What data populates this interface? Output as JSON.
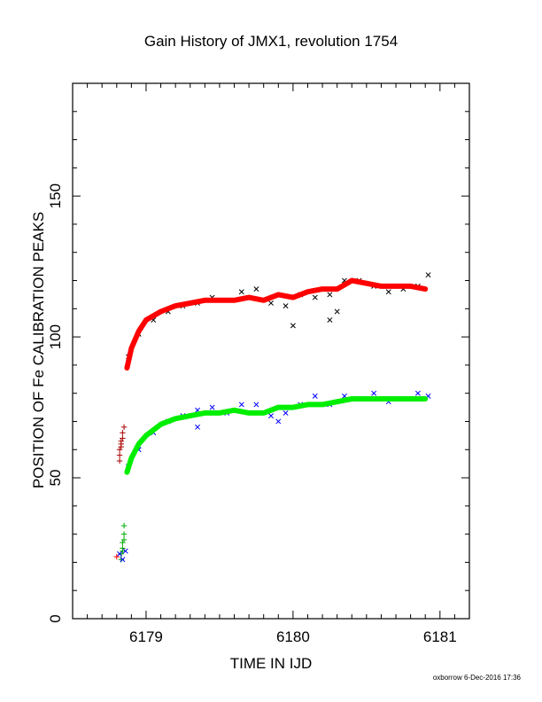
{
  "chart_data": {
    "type": "scatter",
    "title": "Gain History of JMX1, revolution 1754",
    "xlabel": "TIME IN IJD",
    "ylabel": "POSITION OF Fe CALIBRATION PEAKS",
    "xlim": [
      6178.5,
      6181.2
    ],
    "ylim": [
      0,
      190
    ],
    "x_ticks": [
      6179,
      6180,
      6181
    ],
    "y_ticks": [
      0,
      50,
      100,
      150
    ],
    "x_minor_step": 0.1,
    "y_minor_step": 10,
    "grid": false,
    "legend": "none",
    "footer": "oxborrow 6-Dec-2016 17:36",
    "series": [
      {
        "color": "#000000",
        "marker": "x",
        "x": [
          6178.88,
          6178.95,
          6179.05,
          6179.15,
          6179.25,
          6179.35,
          6179.45,
          6179.55,
          6179.65,
          6179.75,
          6179.85,
          6179.95,
          6180.05,
          6180.15,
          6180.25,
          6180.35,
          6180.45,
          6180.55,
          6180.65,
          6180.75,
          6180.85,
          6180.92,
          6180.0,
          6180.25,
          6180.3
        ],
        "y": [
          93,
          101,
          106,
          109,
          111,
          112,
          114,
          113,
          116,
          117,
          112,
          111,
          115,
          114,
          115,
          120,
          120,
          118,
          116,
          117,
          118,
          122,
          104,
          106,
          109
        ]
      },
      {
        "color": "#ff0000",
        "marker": "thick-line",
        "x": [
          6178.87,
          6178.9,
          6178.95,
          6179.0,
          6179.1,
          6179.2,
          6179.3,
          6179.4,
          6179.5,
          6179.6,
          6179.7,
          6179.8,
          6179.9,
          6180.0,
          6180.1,
          6180.2,
          6180.3,
          6180.4,
          6180.5,
          6180.6,
          6180.7,
          6180.8,
          6180.9
        ],
        "y": [
          89,
          96,
          102,
          106,
          109,
          111,
          112,
          113,
          113,
          113,
          114,
          113,
          115,
          114,
          116,
          117,
          117,
          120,
          119,
          118,
          118,
          118,
          117
        ]
      },
      {
        "color": "#0000ff",
        "marker": "x",
        "x": [
          6178.88,
          6178.95,
          6179.05,
          6179.15,
          6179.25,
          6179.35,
          6179.45,
          6179.55,
          6179.65,
          6179.75,
          6179.85,
          6179.95,
          6180.05,
          6180.15,
          6180.25,
          6180.35,
          6180.45,
          6180.55,
          6180.65,
          6180.75,
          6180.85,
          6180.92,
          6179.35,
          6179.9
        ],
        "y": [
          54,
          60,
          66,
          70,
          72,
          74,
          75,
          73,
          76,
          76,
          72,
          73,
          76,
          79,
          76,
          79,
          78,
          80,
          77,
          78,
          80,
          79,
          68,
          70
        ]
      },
      {
        "color": "#00ee00",
        "marker": "thick-line",
        "x": [
          6178.87,
          6178.9,
          6178.95,
          6179.0,
          6179.1,
          6179.2,
          6179.3,
          6179.4,
          6179.5,
          6179.6,
          6179.7,
          6179.8,
          6179.9,
          6180.0,
          6180.1,
          6180.2,
          6180.3,
          6180.4,
          6180.5,
          6180.6,
          6180.7,
          6180.8,
          6180.9
        ],
        "y": [
          52,
          57,
          62,
          65,
          69,
          71,
          72,
          73,
          73,
          74,
          73,
          73,
          75,
          75,
          76,
          76,
          77,
          78,
          78,
          78,
          78,
          78,
          78
        ]
      },
      {
        "color": "#aa0000",
        "marker": "+",
        "x": [
          6178.82,
          6178.82,
          6178.82,
          6178.83,
          6178.83,
          6178.83,
          6178.84,
          6178.84,
          6178.85
        ],
        "y": [
          56,
          58,
          60,
          61,
          62,
          63,
          64,
          66,
          68
        ]
      },
      {
        "color": "#00aa00",
        "marker": "+",
        "x": [
          6178.83,
          6178.83,
          6178.84,
          6178.84,
          6178.84,
          6178.85,
          6178.85,
          6178.85
        ],
        "y": [
          21,
          23,
          24,
          25,
          27,
          28,
          30,
          33
        ]
      },
      {
        "color": "#0000ff",
        "marker": "x",
        "x": [
          6178.82,
          6178.84,
          6178.86
        ],
        "y": [
          23,
          21,
          24
        ]
      },
      {
        "color": "#ff0000",
        "marker": "+",
        "x": [
          6178.8
        ],
        "y": [
          22
        ]
      }
    ]
  }
}
